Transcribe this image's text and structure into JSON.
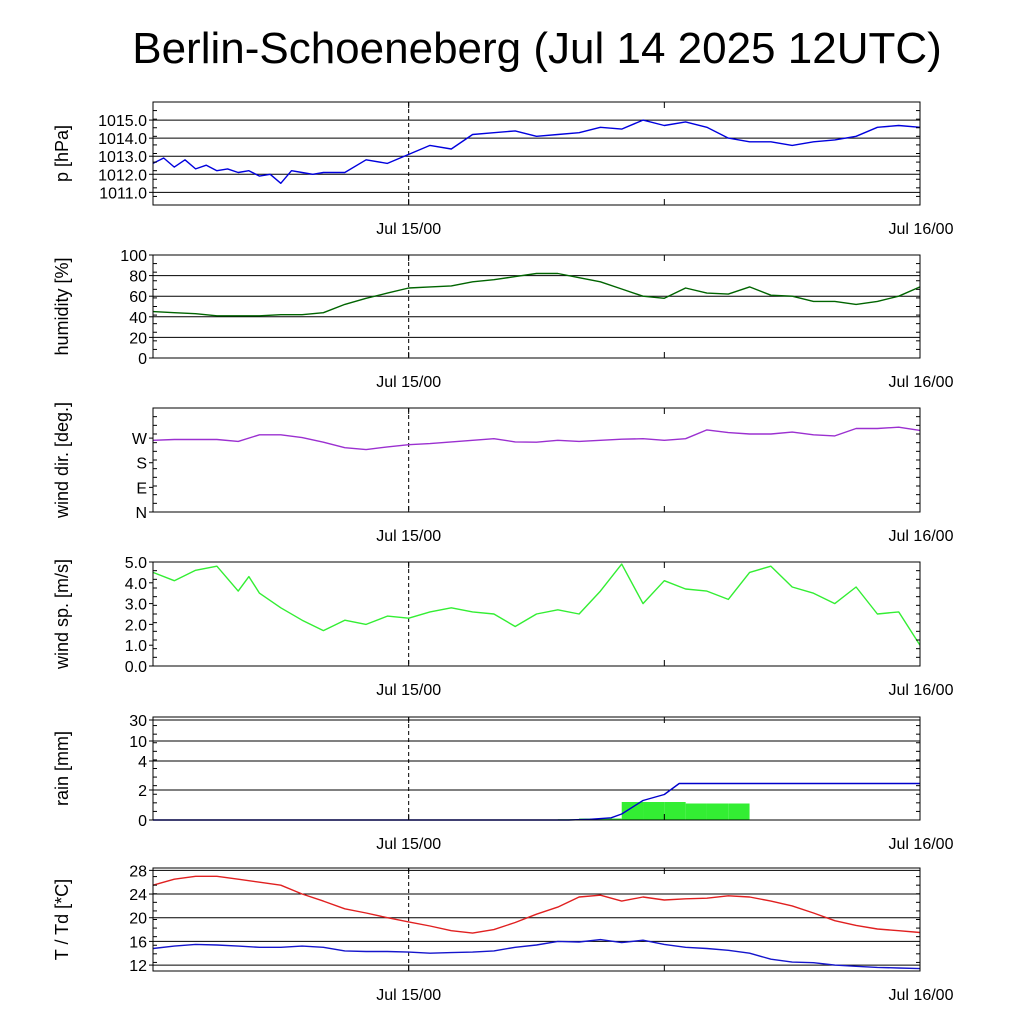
{
  "title": "Berlin-Schoeneberg (Jul 14 2025 12UTC)",
  "x_labels": [
    "Jul 15/00",
    "Jul 16/00"
  ],
  "colors": {
    "pressure": "#0000dd",
    "humidity": "#006400",
    "wind_dir": "#9b30d0",
    "wind_speed": "#33ee33",
    "rain_sum": "#0000cc",
    "rain_bars": "#33ee33",
    "temperature": "#e02020",
    "dewpoint": "#1515cc"
  },
  "chart_data": [
    {
      "type": "line",
      "ylabel": "p [hPa]",
      "ylim": [
        1010.3,
        1016.0
      ],
      "yticks": [
        "1011.0",
        "1012.0",
        "1013.0",
        "1014.0",
        "1015.0"
      ],
      "ytick_values": [
        1011,
        1012,
        1013,
        1014,
        1015
      ],
      "grid": true,
      "series": [
        {
          "key": "pressure",
          "x": [
            0,
            0.5,
            1,
            1.5,
            2,
            2.5,
            3,
            3.5,
            4,
            4.5,
            5,
            5.5,
            6,
            6.5,
            7,
            7.5,
            8,
            9,
            10,
            11,
            12,
            13,
            14,
            15,
            16,
            17,
            18,
            19,
            20,
            21,
            22,
            23,
            24,
            25,
            26,
            27,
            28,
            29,
            30,
            31,
            32,
            33,
            34,
            35,
            36
          ],
          "y": [
            1012.6,
            1012.9,
            1012.4,
            1012.8,
            1012.3,
            1012.5,
            1012.2,
            1012.3,
            1012.1,
            1012.2,
            1011.9,
            1012.0,
            1011.5,
            1012.2,
            1012.1,
            1012.0,
            1012.1,
            1012.1,
            1012.8,
            1012.6,
            1013.1,
            1013.6,
            1013.4,
            1014.2,
            1014.3,
            1014.4,
            1014.1,
            1014.2,
            1014.3,
            1014.6,
            1014.5,
            1015.0,
            1014.7,
            1014.9,
            1014.6,
            1014.0,
            1013.8,
            1013.8,
            1013.6,
            1013.8,
            1013.9,
            1014.1,
            1014.6,
            1014.7,
            1014.6
          ]
        }
      ]
    },
    {
      "type": "line",
      "ylabel": "humidity [%]",
      "ylim": [
        0,
        100
      ],
      "yticks": [
        "0",
        "20",
        "40",
        "60",
        "80",
        "100"
      ],
      "ytick_values": [
        0,
        20,
        40,
        60,
        80,
        100
      ],
      "grid": true,
      "series": [
        {
          "key": "humidity",
          "x": [
            0,
            1,
            2,
            3,
            4,
            5,
            6,
            7,
            8,
            9,
            10,
            11,
            12,
            13,
            14,
            15,
            16,
            17,
            18,
            19,
            20,
            21,
            22,
            23,
            24,
            25,
            26,
            27,
            28,
            29,
            30,
            31,
            32,
            33,
            34,
            35,
            36
          ],
          "y": [
            45,
            44,
            43,
            41,
            41,
            41,
            42,
            42,
            44,
            52,
            58,
            63,
            68,
            69,
            70,
            74,
            76,
            79,
            82,
            82,
            78,
            74,
            67,
            60,
            58,
            68,
            63,
            62,
            69,
            61,
            60,
            55,
            55,
            52,
            55,
            60,
            69
          ]
        }
      ]
    },
    {
      "type": "line",
      "ylabel": "wind dir. [deg.]",
      "ylim": [
        0,
        380
      ],
      "yticks": [
        "N",
        "E",
        "S",
        "W"
      ],
      "ytick_values": [
        0,
        90,
        180,
        270
      ],
      "grid": false,
      "series": [
        {
          "key": "wind_dir",
          "x": [
            0,
            1,
            2,
            3,
            4,
            5,
            6,
            7,
            8,
            9,
            10,
            11,
            12,
            13,
            14,
            15,
            16,
            17,
            18,
            19,
            20,
            21,
            22,
            23,
            24,
            25,
            26,
            27,
            28,
            29,
            30,
            31,
            32,
            33,
            34,
            35,
            36
          ],
          "y": [
            262,
            265,
            265,
            265,
            258,
            282,
            282,
            272,
            255,
            235,
            228,
            238,
            246,
            250,
            256,
            262,
            268,
            256,
            255,
            262,
            258,
            262,
            266,
            268,
            262,
            268,
            300,
            290,
            285,
            285,
            292,
            282,
            278,
            305,
            305,
            310,
            298
          ]
        }
      ]
    },
    {
      "type": "line",
      "ylabel": "wind sp. [m/s]",
      "ylim": [
        0,
        5.0
      ],
      "yticks": [
        "0.0",
        "1.0",
        "2.0",
        "3.0",
        "4.0",
        "5.0"
      ],
      "ytick_values": [
        0,
        1,
        2,
        3,
        4,
        5
      ],
      "grid": false,
      "series": [
        {
          "key": "wind_speed",
          "x": [
            0,
            1,
            2,
            3,
            4,
            4.5,
            5,
            6,
            7,
            8,
            9,
            10,
            11,
            12,
            13,
            14,
            15,
            16,
            17,
            18,
            19,
            20,
            21,
            22,
            23,
            24,
            25,
            26,
            27,
            28,
            29,
            30,
            31,
            32,
            33,
            34,
            35,
            36
          ],
          "y": [
            4.5,
            4.1,
            4.6,
            4.8,
            3.6,
            4.3,
            3.5,
            2.8,
            2.2,
            1.7,
            2.2,
            2.0,
            2.4,
            2.3,
            2.6,
            2.8,
            2.6,
            2.5,
            1.9,
            2.5,
            2.7,
            2.5,
            3.6,
            4.9,
            3.0,
            4.1,
            3.7,
            3.6,
            3.2,
            4.5,
            4.8,
            3.8,
            3.5,
            3.0,
            3.8,
            2.5,
            2.6,
            1.0
          ]
        }
      ]
    },
    {
      "type": "bar",
      "ylabel": "rain [mm]",
      "yticks": [
        "0",
        "2",
        "4",
        "10",
        "30"
      ],
      "ytick_values": [
        0,
        2,
        4,
        10,
        30
      ],
      "scale": "piecewise",
      "grid": true,
      "bars": {
        "key": "rain_bars",
        "x": [
          19.5,
          20.5,
          21.5,
          22.5,
          23.5,
          24.5,
          25.5,
          26.5,
          27.5
        ],
        "width": 1,
        "y": [
          0.05,
          0.1,
          0.1,
          1.2,
          1.2,
          1.2,
          1.1,
          1.1,
          1.1
        ]
      },
      "series": [
        {
          "key": "rain_sum",
          "x": [
            0,
            19.5,
            20.5,
            21.5,
            22,
            23,
            24,
            24.7,
            36
          ],
          "y": [
            0,
            0,
            0.05,
            0.15,
            0.4,
            1.3,
            1.7,
            2.45,
            2.45
          ]
        }
      ]
    },
    {
      "type": "line",
      "ylabel": "T / Td [*C]",
      "ylim": [
        11,
        28.4
      ],
      "yticks": [
        "12",
        "16",
        "20",
        "24",
        "28"
      ],
      "ytick_values": [
        12,
        16,
        20,
        24,
        28
      ],
      "grid": true,
      "series": [
        {
          "key": "temperature",
          "x": [
            0,
            1,
            2,
            3,
            4,
            5,
            6,
            7,
            8,
            9,
            10,
            11,
            12,
            13,
            14,
            15,
            16,
            17,
            18,
            19,
            20,
            21,
            22,
            23,
            24,
            25,
            26,
            27,
            28,
            29,
            30,
            31,
            32,
            33,
            34,
            35,
            36
          ],
          "y": [
            25.5,
            26.5,
            27.0,
            27.0,
            26.5,
            26.0,
            25.5,
            24.0,
            22.8,
            21.5,
            20.8,
            20.0,
            19.3,
            18.6,
            17.8,
            17.4,
            18.0,
            19.2,
            20.6,
            21.8,
            23.5,
            23.8,
            22.8,
            23.5,
            23.0,
            23.2,
            23.3,
            23.7,
            23.5,
            22.8,
            22.0,
            20.8,
            19.5,
            18.7,
            18.1,
            17.8,
            17.5
          ]
        },
        {
          "key": "dewpoint",
          "x": [
            0,
            1,
            2,
            3,
            4,
            5,
            6,
            7,
            8,
            9,
            10,
            11,
            12,
            13,
            14,
            15,
            16,
            17,
            18,
            19,
            20,
            21,
            22,
            23,
            24,
            25,
            26,
            27,
            28,
            29,
            30,
            31,
            32,
            33,
            34,
            35,
            36
          ],
          "y": [
            14.8,
            15.2,
            15.5,
            15.4,
            15.2,
            15.0,
            15.0,
            15.2,
            15.0,
            14.4,
            14.3,
            14.3,
            14.2,
            14.0,
            14.1,
            14.2,
            14.4,
            15.0,
            15.4,
            16.0,
            15.9,
            16.3,
            15.8,
            16.2,
            15.5,
            15.0,
            14.8,
            14.5,
            14.0,
            13.0,
            12.5,
            12.4,
            12.0,
            11.8,
            11.6,
            11.5,
            11.4
          ]
        }
      ]
    }
  ]
}
